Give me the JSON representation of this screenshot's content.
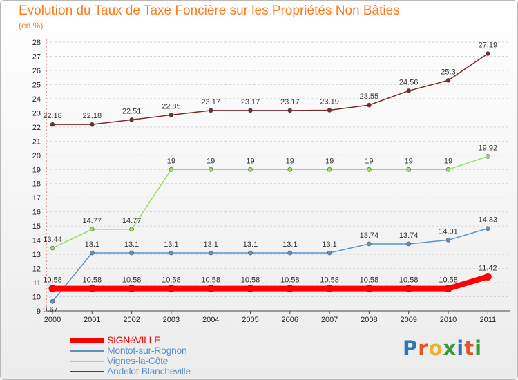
{
  "header": {
    "title": "Evolution du Taux de Taxe Foncière sur les Propriétés Non Bâties",
    "unit": "(en %)"
  },
  "branding": {
    "logo_text": "Proxiti",
    "logo_colors": [
      "#2f73b8",
      "#e2542a",
      "#e9b530",
      "#3a9a3a",
      "#2f73b8",
      "#e2542a",
      "#3a9a3a"
    ]
  },
  "chart_data": {
    "type": "line",
    "title": "Evolution du Taux de Taxe Foncière sur les Propriétés Non Bâties",
    "ylabel": "(en %)",
    "xlabel": "",
    "categories": [
      "2000",
      "2001",
      "2002",
      "2003",
      "2004",
      "2005",
      "2006",
      "2007",
      "2008",
      "2009",
      "2010",
      "2011"
    ],
    "ylim": [
      9,
      28
    ],
    "yticks": [
      9,
      10,
      11,
      12,
      13,
      14,
      15,
      16,
      17,
      18,
      19,
      20,
      21,
      22,
      23,
      24,
      25,
      26,
      27,
      28
    ],
    "grid": "horizontal dashed",
    "legend_position": "bottom-left",
    "series": [
      {
        "name": "SIGNéVILLE",
        "color": "#ff0000",
        "values": [
          10.58,
          10.58,
          10.58,
          10.58,
          10.58,
          10.58,
          10.58,
          10.58,
          10.58,
          10.58,
          10.58,
          11.42
        ],
        "labels": [
          "10.58",
          "10.58",
          "10.58",
          "10.58",
          "10.58",
          "10.58",
          "10.58",
          "10.58",
          "10.58",
          "10.58",
          "10.58",
          "11.42"
        ]
      },
      {
        "name": "Montot-sur-Rognon",
        "color": "#5b93c9",
        "values": [
          9.67,
          13.1,
          13.1,
          13.1,
          13.1,
          13.1,
          13.1,
          13.1,
          13.74,
          13.74,
          14.01,
          14.83
        ],
        "labels": [
          "9.67",
          "13.1",
          "13.1",
          "13.1",
          "13.1",
          "13.1",
          "13.1",
          "13.1",
          "13.74",
          "13.74",
          "14.01",
          "14.83"
        ]
      },
      {
        "name": "Vignes-la-Côte",
        "color": "#99dd66",
        "values": [
          13.44,
          14.77,
          14.77,
          19,
          19,
          19,
          19,
          19,
          19,
          19,
          19,
          19.92
        ],
        "labels": [
          "13.44",
          "14.77",
          "14.77",
          "19",
          "19",
          "19",
          "19",
          "19",
          "19",
          "19",
          "19",
          "19.92"
        ]
      },
      {
        "name": "Andelot-Blancheville",
        "color": "#7a2a2a",
        "values": [
          22.18,
          22.18,
          22.51,
          22.85,
          23.17,
          23.17,
          23.17,
          23.19,
          23.55,
          24.56,
          25.3,
          27.19
        ],
        "labels": [
          "22.18",
          "22.18",
          "22.51",
          "22.85",
          "23.17",
          "23.17",
          "23.17",
          "23.19",
          "23.55",
          "24.56",
          "25.3",
          "27.19"
        ]
      }
    ]
  }
}
